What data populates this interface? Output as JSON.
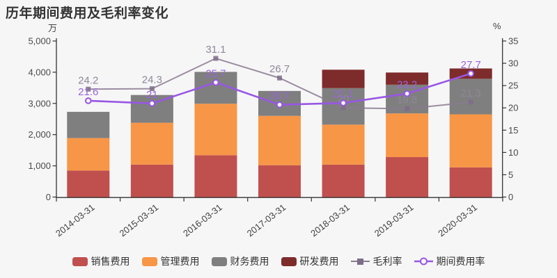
{
  "title": "历年期间费用及毛利率变化",
  "axes": {
    "left_unit": "万",
    "right_unit": "%",
    "left_ticks": [
      "0",
      "1,000",
      "2,000",
      "3,000",
      "4,000",
      "5,000"
    ],
    "right_ticks": [
      "0",
      "5",
      "10",
      "15",
      "20",
      "25",
      "30",
      "35"
    ]
  },
  "chart_data": {
    "type": "bar",
    "subtype": "stacked-bars-with-two-lines",
    "title": "历年期间费用及毛利率变化",
    "categories": [
      "2014-03-31",
      "2015-03-31",
      "2016-03-31",
      "2017-03-31",
      "2018-03-31",
      "2019-03-31",
      "2020-03-31"
    ],
    "ylim_left": [
      0,
      5000
    ],
    "ylim_right": [
      0,
      35
    ],
    "ylabel_left": "万",
    "ylabel_right": "%",
    "grid": false,
    "legend_position": "bottom",
    "bar_series": [
      {
        "name": "销售费用",
        "slug": "sales-expense",
        "color": "#c0504d",
        "values": [
          850,
          1040,
          1340,
          1020,
          1040,
          1280,
          950
        ]
      },
      {
        "name": "管理费用",
        "slug": "admin-expense",
        "color": "#f79646",
        "values": [
          1040,
          1340,
          1650,
          1580,
          1280,
          1400,
          1700
        ]
      },
      {
        "name": "财务费用",
        "slug": "finance-expense",
        "color": "#7f7f7f",
        "values": [
          840,
          890,
          1020,
          800,
          1170,
          920,
          1140
        ]
      },
      {
        "name": "研发费用",
        "slug": "rd-expense",
        "color": "#7e2b2b",
        "values": [
          0,
          0,
          0,
          0,
          590,
          390,
          330
        ]
      }
    ],
    "line_series": [
      {
        "name": "毛利率",
        "slug": "gross-margin",
        "axis": "right",
        "color": "#8a7a8f",
        "marker": "square",
        "marker_fill": "#7c6d88",
        "label_color": "#8f8799",
        "width": 2,
        "opacity": 0.85,
        "values": [
          24.2,
          24.3,
          31.1,
          26.7,
          20,
          19.8,
          21.3
        ],
        "labels": [
          "24.2",
          "24.3",
          "31.1",
          "26.7",
          "20",
          "19.8",
          "21.3"
        ]
      },
      {
        "name": "期间费用率",
        "slug": "period-expense-ratio",
        "axis": "right",
        "color": "#9857e3",
        "marker": "circle",
        "marker_fill": "#f6f6f7",
        "label_color": "#9a64db",
        "width": 2.6,
        "opacity": 1,
        "values": [
          21.6,
          21,
          25.7,
          20.7,
          21.1,
          23.2,
          27.7
        ],
        "labels": [
          "21.6",
          "21",
          "25.7",
          "20.7",
          "21.1",
          "23.2",
          "27.7"
        ]
      }
    ]
  }
}
